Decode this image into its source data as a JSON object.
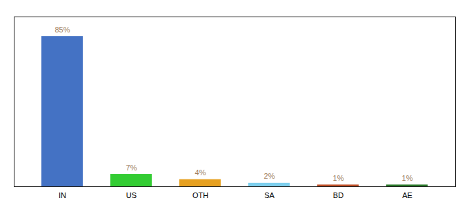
{
  "chart_data": {
    "type": "bar",
    "categories": [
      "IN",
      "US",
      "OTH",
      "SA",
      "BD",
      "AE"
    ],
    "values": [
      85,
      7,
      4,
      2,
      1,
      1
    ],
    "value_labels": [
      "85%",
      "7%",
      "4%",
      "2%",
      "1%",
      "1%"
    ],
    "colors": [
      "#4472c4",
      "#33cc33",
      "#e6a020",
      "#7ecfed",
      "#c0522a",
      "#2d7a2d"
    ],
    "ylim": [
      0,
      96
    ],
    "data_labels": true,
    "tick_labels": "x",
    "grid": false
  }
}
